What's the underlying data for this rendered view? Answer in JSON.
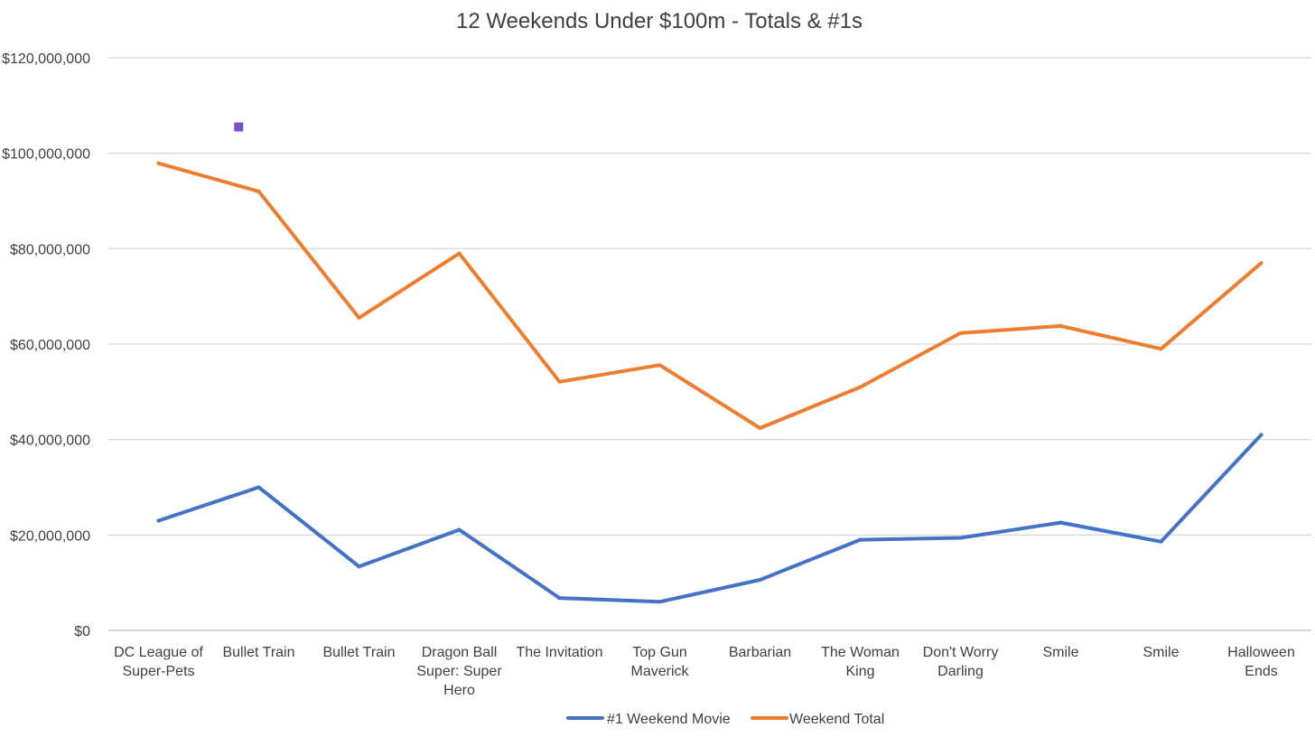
{
  "chart_data": {
    "type": "line",
    "title": "12 Weekends Under $100m - Totals & #1s",
    "xlabel": "",
    "ylabel": "",
    "ylim": [
      0,
      120000000
    ],
    "y_ticks": [
      {
        "value": 0,
        "label": "$0"
      },
      {
        "value": 20000000,
        "label": "$20,000,000"
      },
      {
        "value": 40000000,
        "label": "$40,000,000"
      },
      {
        "value": 60000000,
        "label": "$60,000,000"
      },
      {
        "value": 80000000,
        "label": "$80,000,000"
      },
      {
        "value": 100000000,
        "label": "$100,000,000"
      },
      {
        "value": 120000000,
        "label": "$120,000,000"
      }
    ],
    "grid": true,
    "legend_position": "bottom",
    "categories": [
      "DC League of Super-Pets",
      "Bullet Train",
      "Bullet Train",
      "Dragon Ball Super: Super Hero",
      "The Invitation",
      "Top Gun Maverick",
      "Barbarian",
      "The Woman King",
      "Don't Worry Darling",
      "Smile",
      "Smile",
      "Halloween Ends"
    ],
    "category_label_lines": [
      [
        "DC League of",
        "Super-Pets"
      ],
      [
        "Bullet Train"
      ],
      [
        "Bullet Train"
      ],
      [
        "Dragon Ball",
        "Super: Super",
        "Hero"
      ],
      [
        "The Invitation"
      ],
      [
        "Top Gun",
        "Maverick"
      ],
      [
        "Barbarian"
      ],
      [
        "The Woman",
        "King"
      ],
      [
        "Don't Worry",
        "Darling"
      ],
      [
        "Smile"
      ],
      [
        "Smile"
      ],
      [
        "Halloween",
        "Ends"
      ]
    ],
    "series": [
      {
        "name": "#1 Weekend Movie",
        "color": "#4472c4",
        "values": [
          23000000,
          30000000,
          13400000,
          21100000,
          6800000,
          6000000,
          10600000,
          19000000,
          19400000,
          22600000,
          18600000,
          41000000
        ]
      },
      {
        "name": "Weekend Total",
        "color": "#ed7d31",
        "values": [
          97900000,
          92000000,
          65500000,
          79000000,
          52100000,
          55600000,
          42400000,
          51000000,
          62300000,
          63800000,
          59000000,
          77000000
        ]
      }
    ],
    "annotations": [
      {
        "type": "marker",
        "shape": "square",
        "color": "#7b4fc8",
        "category_position": 0.8,
        "value": 105500000
      }
    ]
  }
}
